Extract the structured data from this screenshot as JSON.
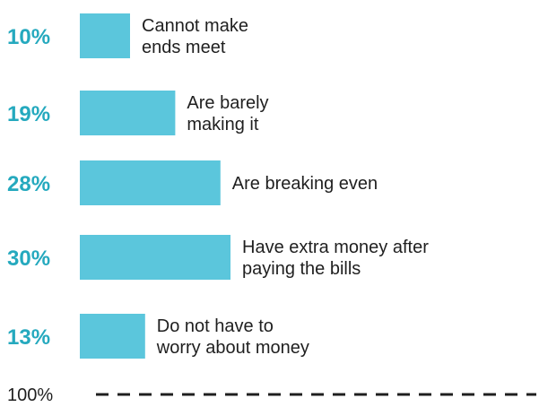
{
  "chart_data": {
    "type": "bar",
    "orientation": "horizontal",
    "bar_color": "#5bc6dc",
    "value_label_color": "#25a9be",
    "categories": [
      "Cannot make ends meet",
      "Are barely making it",
      "Are breaking even",
      "Have extra money after paying the bills",
      "Do not have to worry about money"
    ],
    "category_label_lines": [
      [
        "Cannot make",
        "ends meet"
      ],
      [
        "Are barely",
        "making it"
      ],
      [
        "Are breaking even"
      ],
      [
        "Have extra money after",
        "paying the bills"
      ],
      [
        "Do not have to",
        "worry about money"
      ]
    ],
    "values": [
      10,
      19,
      28,
      30,
      13
    ],
    "value_labels": [
      "10%",
      "19%",
      "28%",
      "30%",
      "13%"
    ],
    "total_label": "100%"
  }
}
